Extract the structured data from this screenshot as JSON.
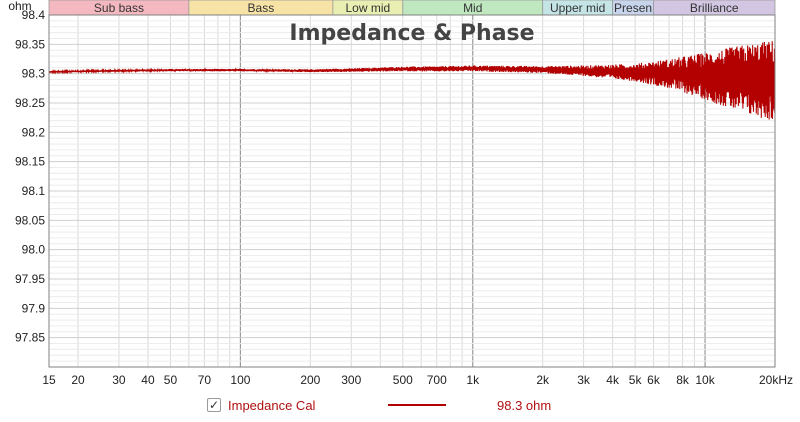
{
  "chart_data": {
    "type": "line",
    "title": "Impedance & Phase",
    "y_unit_label": "ohm",
    "x_scale": "log",
    "xlim": [
      15,
      20000
    ],
    "ylim": [
      97.8,
      98.4
    ],
    "grid": true,
    "x_tick_labels": [
      {
        "v": 15,
        "t": "15"
      },
      {
        "v": 20,
        "t": "20"
      },
      {
        "v": 30,
        "t": "30"
      },
      {
        "v": 40,
        "t": "40"
      },
      {
        "v": 50,
        "t": "50"
      },
      {
        "v": 70,
        "t": "70"
      },
      {
        "v": 100,
        "t": "100"
      },
      {
        "v": 200,
        "t": "200"
      },
      {
        "v": 300,
        "t": "300"
      },
      {
        "v": 500,
        "t": "500"
      },
      {
        "v": 700,
        "t": "700"
      },
      {
        "v": 1000,
        "t": "1k"
      },
      {
        "v": 2000,
        "t": "2k"
      },
      {
        "v": 3000,
        "t": "3k"
      },
      {
        "v": 4000,
        "t": "4k"
      },
      {
        "v": 5000,
        "t": "5k"
      },
      {
        "v": 6000,
        "t": "6k"
      },
      {
        "v": 8000,
        "t": "8k"
      },
      {
        "v": 10000,
        "t": "10k"
      },
      {
        "v": 20000,
        "t": "20kHz"
      }
    ],
    "y_tick_labels": [
      {
        "v": 98.4,
        "t": "98.4"
      },
      {
        "v": 98.35,
        "t": "98.35"
      },
      {
        "v": 98.3,
        "t": "98.3"
      },
      {
        "v": 98.25,
        "t": "98.25"
      },
      {
        "v": 98.2,
        "t": "98.2"
      },
      {
        "v": 98.15,
        "t": "98.15"
      },
      {
        "v": 98.1,
        "t": "98.1"
      },
      {
        "v": 98.05,
        "t": "98.05"
      },
      {
        "v": 98.0,
        "t": "98.0"
      },
      {
        "v": 97.95,
        "t": "97.95"
      },
      {
        "v": 97.9,
        "t": "97.9"
      },
      {
        "v": 97.85,
        "t": "97.85"
      }
    ],
    "bands": [
      {
        "label": "Sub bass",
        "from": 15,
        "to": 60,
        "color": "#f4b8c1"
      },
      {
        "label": "Bass",
        "from": 60,
        "to": 250,
        "color": "#f7e3a6"
      },
      {
        "label": "Low mid",
        "from": 250,
        "to": 500,
        "color": "#e9efb2"
      },
      {
        "label": "Mid",
        "from": 500,
        "to": 2000,
        "color": "#bfe8c0"
      },
      {
        "label": "Upper mid",
        "from": 2000,
        "to": 4000,
        "color": "#c4e4e6"
      },
      {
        "label": "Presen",
        "from": 4000,
        "to": 6000,
        "color": "#c7d4ec"
      },
      {
        "label": "Brilliance",
        "from": 6000,
        "to": 20000,
        "color": "#d2c6e2"
      }
    ],
    "series": [
      {
        "name": "Impedance Cal",
        "color": "#b30000",
        "display_value": "98.3 ohm",
        "x": [
          15,
          20,
          30,
          50,
          100,
          200,
          300,
          500,
          700,
          1000,
          2000,
          3000,
          5000,
          7000,
          10000,
          15000,
          20000
        ],
        "y": [
          98.303,
          98.304,
          98.305,
          98.306,
          98.306,
          98.305,
          98.306,
          98.308,
          98.308,
          98.309,
          98.307,
          98.305,
          98.302,
          98.3,
          98.296,
          98.29,
          98.288
        ],
        "spread": [
          0.0015,
          0.0015,
          0.0015,
          0.002,
          0.002,
          0.0025,
          0.003,
          0.004,
          0.0045,
          0.005,
          0.006,
          0.009,
          0.015,
          0.025,
          0.04,
          0.06,
          0.07
        ]
      }
    ]
  },
  "legend": {
    "checkbox_mark": "✓",
    "series_name": "Impedance Cal",
    "series_value": "98.3 ohm"
  }
}
